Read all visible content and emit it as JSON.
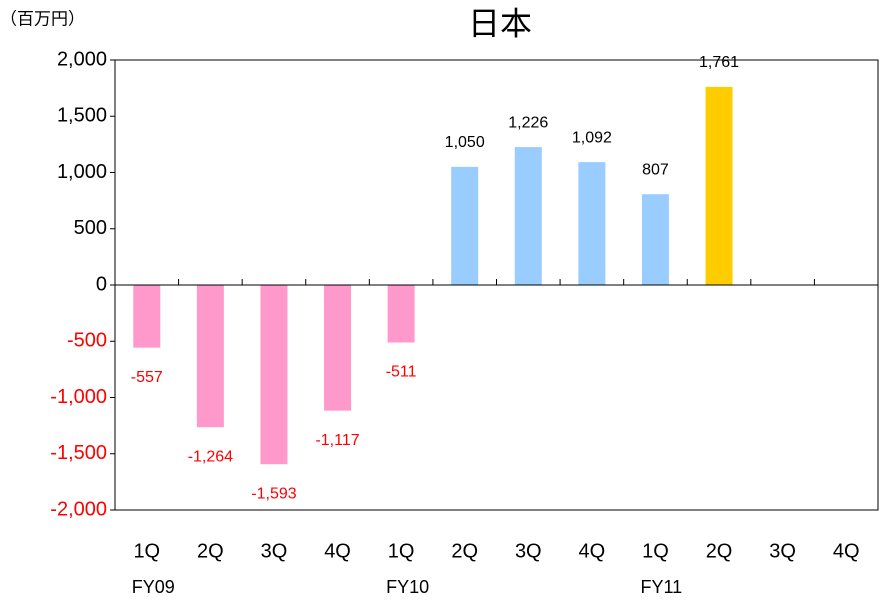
{
  "chart_data": {
    "type": "bar",
    "title": "日本",
    "unit_label": "（百万円）",
    "categories": [
      "1Q",
      "2Q",
      "3Q",
      "4Q",
      "1Q",
      "2Q",
      "3Q",
      "4Q",
      "1Q",
      "2Q",
      "3Q",
      "4Q"
    ],
    "group_labels": [
      "FY09",
      null,
      null,
      null,
      "FY10",
      null,
      null,
      null,
      "FY11",
      null,
      null,
      null
    ],
    "values": [
      -557,
      -1264,
      -1593,
      -1117,
      -511,
      1050,
      1226,
      1092,
      807,
      1761,
      null,
      null
    ],
    "value_labels": [
      "-557",
      "-1,264",
      "-1,593",
      "-1,117",
      "-511",
      "1,050",
      "1,226",
      "1,092",
      "807",
      "1,761",
      null,
      null
    ],
    "colors": [
      "#ff99cc",
      "#ff99cc",
      "#ff99cc",
      "#ff99cc",
      "#ff99cc",
      "#99ccff",
      "#99ccff",
      "#99ccff",
      "#99ccff",
      "#ffcc00",
      null,
      null
    ],
    "negative_label_color": "#ff0000",
    "ylim": [
      -2000,
      2000
    ],
    "yticks": [
      {
        "value": -2000,
        "label": "-2,000"
      },
      {
        "value": -1500,
        "label": "-1,500"
      },
      {
        "value": -1000,
        "label": "-1,000"
      },
      -500,
      0,
      500,
      {
        "value": 1000,
        "label": "1,000"
      },
      {
        "value": 1500,
        "label": "1,500"
      },
      {
        "value": 2000,
        "label": "2,000"
      }
    ],
    "grid": false
  }
}
